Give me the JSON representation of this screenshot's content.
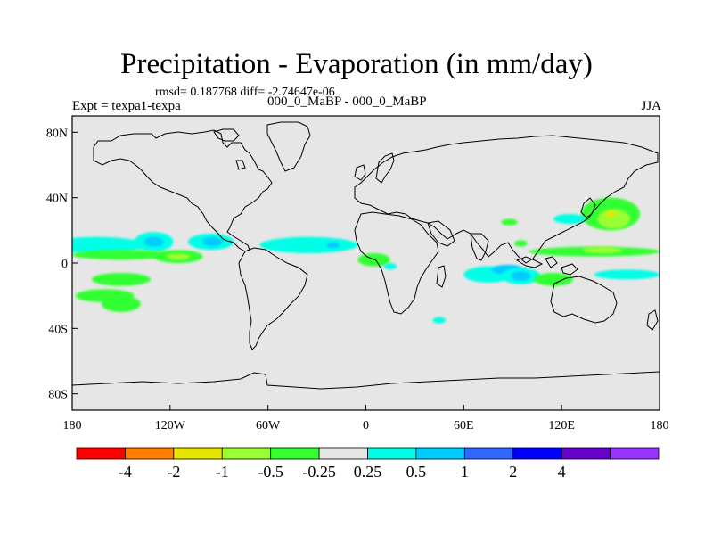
{
  "header": {
    "title": "Precipitation - Evaporation (in mm/day)",
    "stats": "rmsd= 0.187768 diff= -2.74647e-06",
    "expt": "Expt = texpa1-texpa",
    "case": "000_0_MaBP - 000_0_MaBP",
    "season": "JJA"
  },
  "chart_data": {
    "type": "heatmap",
    "title": "Precipitation - Evaporation (in mm/day)",
    "subtitle": "000_0_MaBP - 000_0_MaBP",
    "units": "mm/day",
    "xlim": [
      -180,
      180
    ],
    "ylim": [
      -90,
      90
    ],
    "x_ticks": [
      {
        "value": -180,
        "label": "180"
      },
      {
        "value": -120,
        "label": "120W"
      },
      {
        "value": -60,
        "label": "60W"
      },
      {
        "value": 0,
        "label": "0"
      },
      {
        "value": 60,
        "label": "60E"
      },
      {
        "value": 120,
        "label": "120E"
      },
      {
        "value": 180,
        "label": "180"
      }
    ],
    "y_ticks": [
      {
        "value": 80,
        "label": "80N"
      },
      {
        "value": 40,
        "label": "40N"
      },
      {
        "value": 0,
        "label": "0"
      },
      {
        "value": -40,
        "label": "40S"
      },
      {
        "value": -80,
        "label": "80S"
      }
    ],
    "background_color": "#e6e6e6",
    "colorbar": {
      "colors": [
        "#ff0000",
        "#ff8000",
        "#e6e600",
        "#99ff33",
        "#33ff33",
        "#e6e6e6",
        "#00ffe6",
        "#00ccff",
        "#3366ff",
        "#0000ff",
        "#6600cc",
        "#9933ff"
      ],
      "labels": [
        "-4",
        "-2",
        "-1",
        "-0.5",
        "-0.25",
        "0.25",
        "0.5",
        "1",
        "2",
        "4"
      ]
    },
    "contours": [
      {
        "class": "+0.25",
        "color": "#00ffe6",
        "lon": -165,
        "lat": 11,
        "dlon": 30,
        "dlat": 5
      },
      {
        "class": "+0.25",
        "color": "#00ffe6",
        "lon": -130,
        "lat": 13,
        "dlon": 12,
        "dlat": 6
      },
      {
        "class": "+0.5",
        "color": "#00ccff",
        "lon": -130,
        "lat": 13,
        "dlon": 6,
        "dlat": 3
      },
      {
        "class": "+0.25",
        "color": "#00ffe6",
        "lon": -95,
        "lat": 13,
        "dlon": 14,
        "dlat": 5
      },
      {
        "class": "+0.5",
        "color": "#00ccff",
        "lon": -94,
        "lat": 13,
        "dlon": 6,
        "dlat": 3
      },
      {
        "class": "+0.25",
        "color": "#00ffe6",
        "lon": -35,
        "lat": 11,
        "dlon": 30,
        "dlat": 5
      },
      {
        "class": "+0.5",
        "color": "#00ccff",
        "lon": -20,
        "lat": 11,
        "dlon": 4,
        "dlat": 2
      },
      {
        "class": "-0.25",
        "color": "#33ff33",
        "lon": -150,
        "lat": 5,
        "dlon": 30,
        "dlat": 3
      },
      {
        "class": "-0.25",
        "color": "#33ff33",
        "lon": -115,
        "lat": 4,
        "dlon": 15,
        "dlat": 4
      },
      {
        "class": "-0.5",
        "color": "#99ff33",
        "lon": -115,
        "lat": 4,
        "dlon": 7,
        "dlat": 2
      },
      {
        "class": "-0.25",
        "color": "#33ff33",
        "lon": -150,
        "lat": -10,
        "dlon": 18,
        "dlat": 4
      },
      {
        "class": "-0.25",
        "color": "#33ff33",
        "lon": -160,
        "lat": -20,
        "dlon": 18,
        "dlat": 4
      },
      {
        "class": "-0.25",
        "color": "#33ff33",
        "lon": -150,
        "lat": -25,
        "dlon": 12,
        "dlat": 5
      },
      {
        "class": "-0.25",
        "color": "#33ff33",
        "lon": 5,
        "lat": 2,
        "dlon": 10,
        "dlat": 4
      },
      {
        "class": "+0.25",
        "color": "#00ffe6",
        "lon": 15,
        "lat": -2,
        "dlon": 4,
        "dlat": 2
      },
      {
        "class": "+0.25",
        "color": "#00ffe6",
        "lon": 75,
        "lat": -7,
        "dlon": 15,
        "dlat": 5
      },
      {
        "class": "+0.5",
        "color": "#00ccff",
        "lon": 87,
        "lat": -4,
        "dlon": 10,
        "dlat": 3
      },
      {
        "class": "+0.25",
        "color": "#00ffe6",
        "lon": 95,
        "lat": -8,
        "dlon": 12,
        "dlat": 5
      },
      {
        "class": "+0.5",
        "color": "#00ccff",
        "lon": 95,
        "lat": -8,
        "dlon": 6,
        "dlat": 3
      },
      {
        "class": "+0.25",
        "color": "#00ffe6",
        "lon": 160,
        "lat": -7,
        "dlon": 20,
        "dlat": 3
      },
      {
        "class": "-0.25",
        "color": "#33ff33",
        "lon": 115,
        "lat": -10,
        "dlon": 12,
        "dlat": 4
      },
      {
        "class": "-0.25",
        "color": "#33ff33",
        "lon": 150,
        "lat": 30,
        "dlon": 18,
        "dlat": 10
      },
      {
        "class": "-0.5",
        "color": "#99ff33",
        "lon": 152,
        "lat": 27,
        "dlon": 10,
        "dlat": 6
      },
      {
        "class": "-1",
        "color": "#e6e600",
        "lon": 150,
        "lat": 30,
        "dlon": 3,
        "dlat": 2
      },
      {
        "class": "-0.25",
        "color": "#33ff33",
        "lon": 140,
        "lat": 7,
        "dlon": 40,
        "dlat": 3
      },
      {
        "class": "-0.5",
        "color": "#99ff33",
        "lon": 145,
        "lat": 8,
        "dlon": 12,
        "dlat": 2
      },
      {
        "class": "+0.25",
        "color": "#00ffe6",
        "lon": 125,
        "lat": 27,
        "dlon": 10,
        "dlat": 3
      },
      {
        "class": "-0.25",
        "color": "#33ff33",
        "lon": 88,
        "lat": 25,
        "dlon": 5,
        "dlat": 2
      },
      {
        "class": "-0.25",
        "color": "#33ff33",
        "lon": 95,
        "lat": 12,
        "dlon": 4,
        "dlat": 2
      },
      {
        "class": "+0.25",
        "color": "#00ffe6",
        "lon": 45,
        "lat": -35,
        "dlon": 4,
        "dlat": 2
      }
    ]
  }
}
